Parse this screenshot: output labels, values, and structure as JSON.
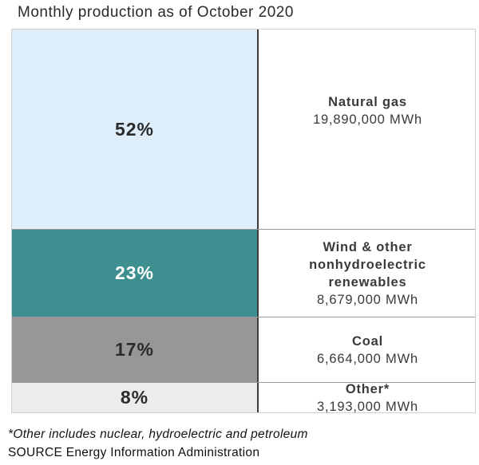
{
  "title": "Monthly production as of October 2020",
  "footnote": "*Other includes nuclear, hydroelectric and petroleum",
  "source": "SOURCE Energy Information Administration",
  "chart_data": {
    "type": "bar",
    "title": "Monthly production as of October 2020",
    "categories": [
      "Natural gas",
      "Wind & other nonhydroelectric renewables",
      "Coal",
      "Other*"
    ],
    "percent_labels": [
      "52%",
      "23%",
      "17%",
      "8%"
    ],
    "values": [
      52,
      23,
      17,
      8
    ],
    "mwh_labels": [
      "19,890,000 MWh",
      "8,679,000 MWh",
      "6,664,000 MWh",
      "3,193,000 MWh"
    ],
    "mwh_values": [
      19890000,
      8679000,
      6664000,
      3193000
    ],
    "colors": [
      "#ddeefa",
      "#3e8f8f",
      "#979797",
      "#ececec"
    ],
    "text_colors": [
      "#2b2b2b",
      "#ffffff",
      "#2b2b2b",
      "#2b2b2b"
    ]
  }
}
